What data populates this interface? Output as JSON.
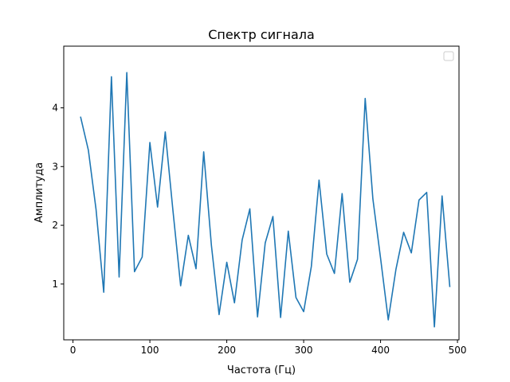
{
  "chart_data": {
    "type": "line",
    "title": "Спектр сигнала",
    "xlabel": "Частота (Гц)",
    "ylabel": "Амплитуда",
    "xlim": [
      -12,
      502
    ],
    "ylim": [
      0.05,
      5.05
    ],
    "xticks": [
      0,
      100,
      200,
      300,
      400,
      500
    ],
    "yticks": [
      1,
      2,
      3,
      4
    ],
    "grid": false,
    "legend": "top-right",
    "line_color": "#1f77b4",
    "series": [
      {
        "x": [
          10,
          20,
          30,
          40,
          50,
          60,
          70,
          80,
          90,
          100,
          110,
          120,
          130,
          140,
          150,
          160,
          170,
          180,
          190,
          200,
          210,
          220,
          230,
          240,
          250,
          260,
          270,
          280,
          290,
          300,
          310,
          320,
          330,
          340,
          350,
          360,
          370,
          380,
          390,
          400,
          410,
          420,
          430,
          440,
          450,
          460,
          470,
          480,
          490
        ],
        "values": [
          3.84,
          3.28,
          2.27,
          0.86,
          4.53,
          1.12,
          4.6,
          1.21,
          1.46,
          3.41,
          2.31,
          3.59,
          2.25,
          0.97,
          1.83,
          1.26,
          3.25,
          1.66,
          0.48,
          1.37,
          0.68,
          1.75,
          2.28,
          0.44,
          1.7,
          2.15,
          0.43,
          1.9,
          0.77,
          0.53,
          1.3,
          2.77,
          1.51,
          1.18,
          2.54,
          1.03,
          1.42,
          4.16,
          2.45,
          1.44,
          0.39,
          1.25,
          1.88,
          1.53,
          2.43,
          2.56,
          0.27,
          2.5,
          0.96
        ]
      }
    ]
  }
}
